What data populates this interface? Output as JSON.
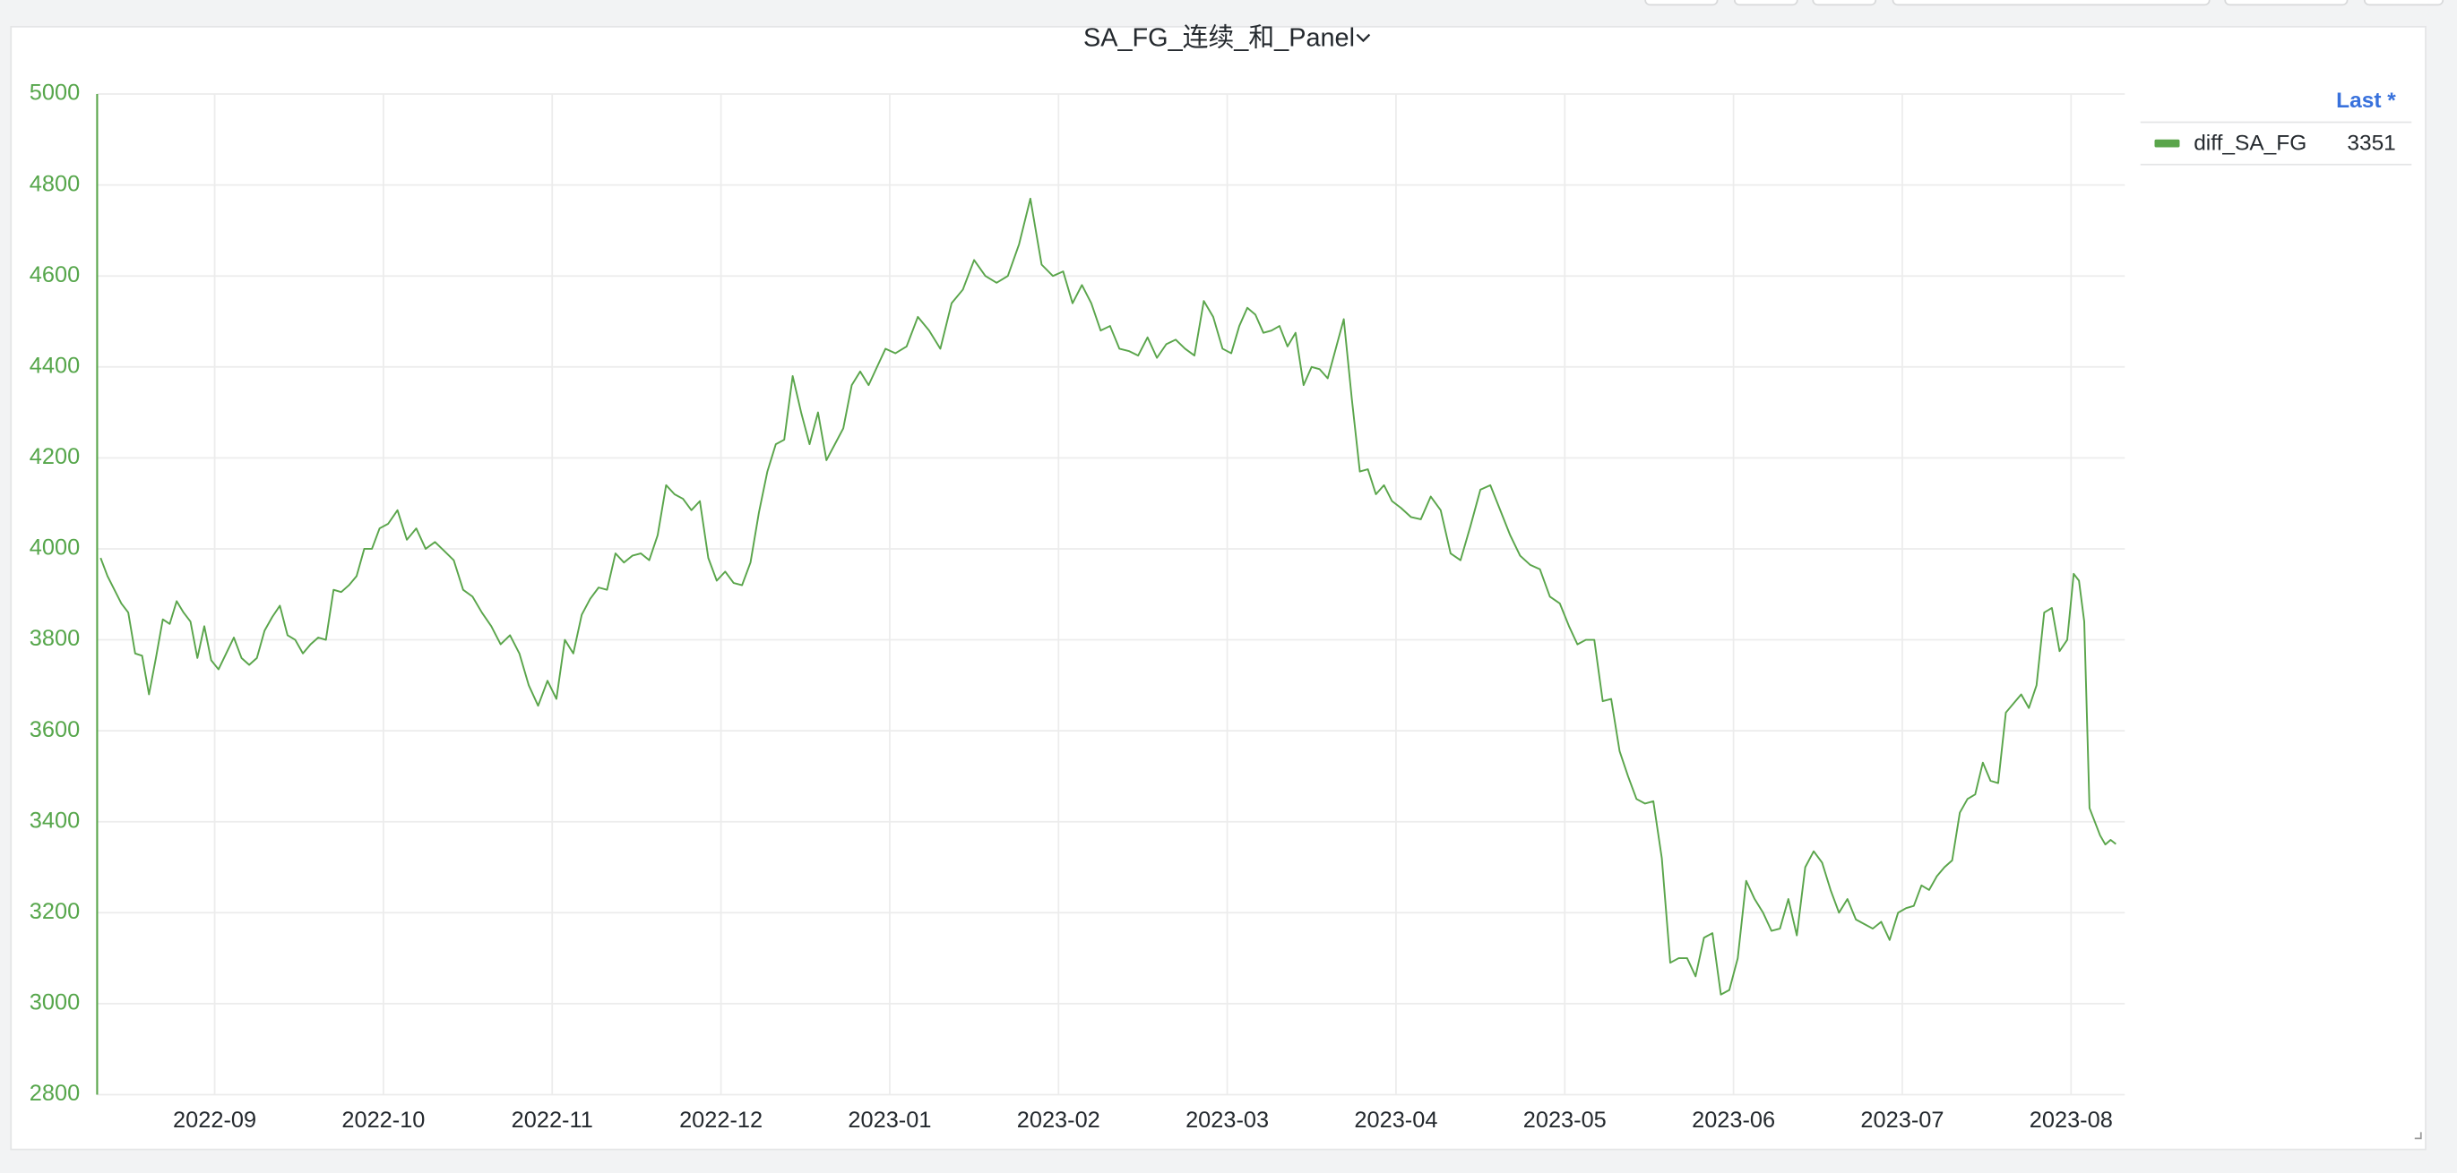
{
  "chart_data": {
    "type": "line",
    "title": "SA_FG_连续_和_Panel",
    "xlim": [
      "2022-08",
      "2023-08"
    ],
    "xticks": [
      "2022-09",
      "2022-10",
      "2022-11",
      "2022-12",
      "2023-01",
      "2023-02",
      "2023-03",
      "2023-04",
      "2023-05",
      "2023-06",
      "2023-07",
      "2023-08"
    ],
    "ylim": [
      2800,
      5000
    ],
    "yticks": [
      2800,
      3000,
      3200,
      3400,
      3600,
      3800,
      4000,
      4200,
      4400,
      4600,
      4800,
      5000
    ],
    "grid": true,
    "legend": {
      "position": "right",
      "stat_label": "Last *",
      "last": 3351
    },
    "x": [
      "2022-08",
      "2022-08",
      "2022-08",
      "2022-08",
      "2022-08",
      "2022-08",
      "2022-08",
      "2022-08",
      "2022-08",
      "2022-08",
      "2022-08",
      "2022-08",
      "2022-08",
      "2022-08",
      "2022-08",
      "2022-08",
      "2022-08",
      "2022-09",
      "2022-09",
      "2022-09",
      "2022-09",
      "2022-09",
      "2022-09",
      "2022-09",
      "2022-09",
      "2022-09",
      "2022-09",
      "2022-09",
      "2022-09",
      "2022-09",
      "2022-09",
      "2022-09",
      "2022-09",
      "2022-09",
      "2022-09",
      "2022-09",
      "2022-09",
      "2022-09",
      "2022-09",
      "2022-10",
      "2022-10",
      "2022-10",
      "2022-10",
      "2022-10",
      "2022-10",
      "2022-10",
      "2022-10",
      "2022-10",
      "2022-10",
      "2022-10",
      "2022-10",
      "2022-10",
      "2022-10",
      "2022-10",
      "2022-10",
      "2022-10",
      "2022-10",
      "2022-11",
      "2022-11",
      "2022-11",
      "2022-11",
      "2022-11",
      "2022-11",
      "2022-11",
      "2022-11",
      "2022-11",
      "2022-11",
      "2022-11",
      "2022-11",
      "2022-11",
      "2022-11",
      "2022-11",
      "2022-11",
      "2022-11",
      "2022-11",
      "2022-11",
      "2022-11",
      "2022-12",
      "2022-12",
      "2022-12",
      "2022-12",
      "2022-12",
      "2022-12",
      "2022-12",
      "2022-12",
      "2022-12",
      "2022-12",
      "2022-12",
      "2022-12",
      "2022-12",
      "2022-12",
      "2022-12",
      "2022-12",
      "2022-12",
      "2022-12",
      "2022-12",
      "2022-12",
      "2023-01",
      "2023-01",
      "2023-01",
      "2023-01",
      "2023-01",
      "2023-01",
      "2023-01",
      "2023-01",
      "2023-01",
      "2023-01",
      "2023-01",
      "2023-01",
      "2023-01",
      "2023-01",
      "2023-01",
      "2023-02",
      "2023-02",
      "2023-02",
      "2023-02",
      "2023-02",
      "2023-02",
      "2023-02",
      "2023-02",
      "2023-02",
      "2023-02",
      "2023-02",
      "2023-02",
      "2023-02",
      "2023-02",
      "2023-02",
      "2023-02",
      "2023-02",
      "2023-02",
      "2023-03",
      "2023-03",
      "2023-03",
      "2023-03",
      "2023-03",
      "2023-03",
      "2023-03",
      "2023-03",
      "2023-03",
      "2023-03",
      "2023-03",
      "2023-03",
      "2023-03",
      "2023-03",
      "2023-03",
      "2023-03",
      "2023-03",
      "2023-03",
      "2023-03",
      "2023-03",
      "2023-03",
      "2023-04",
      "2023-04",
      "2023-04",
      "2023-04",
      "2023-04",
      "2023-04",
      "2023-04",
      "2023-04",
      "2023-04",
      "2023-04",
      "2023-04",
      "2023-04",
      "2023-04",
      "2023-04",
      "2023-04",
      "2023-04",
      "2023-04",
      "2023-05",
      "2023-05",
      "2023-05",
      "2023-05",
      "2023-05",
      "2023-05",
      "2023-05",
      "2023-05",
      "2023-05",
      "2023-05",
      "2023-05",
      "2023-05",
      "2023-05",
      "2023-05",
      "2023-05",
      "2023-05",
      "2023-05",
      "2023-05",
      "2023-05",
      "2023-05",
      "2023-06",
      "2023-06",
      "2023-06",
      "2023-06",
      "2023-06",
      "2023-06",
      "2023-06",
      "2023-06",
      "2023-06",
      "2023-06",
      "2023-06",
      "2023-06",
      "2023-06",
      "2023-06",
      "2023-06",
      "2023-06",
      "2023-06",
      "2023-06",
      "2023-06",
      "2023-06",
      "2023-07",
      "2023-07",
      "2023-07",
      "2023-07",
      "2023-07",
      "2023-07",
      "2023-07",
      "2023-07",
      "2023-07",
      "2023-07",
      "2023-07",
      "2023-07",
      "2023-07",
      "2023-07",
      "2023-07",
      "2023-07",
      "2023-07",
      "2023-07",
      "2023-07",
      "2023-07",
      "2023-07",
      "2023-07",
      "2023-08",
      "2023-08",
      "2023-08",
      "2023-08",
      "2023-08",
      "2023-08",
      "2023-08",
      "2023-08",
      "2023-08"
    ],
    "series": [
      {
        "name": "diff_SA_FG",
        "color": "#5aa54b",
        "values": [
          3980,
          3940,
          3910,
          3880,
          3860,
          3770,
          3765,
          3680,
          3760,
          3845,
          3835,
          3885,
          3860,
          3840,
          3760,
          3830,
          3755,
          3735,
          3770,
          3805,
          3760,
          3745,
          3760,
          3820,
          3850,
          3875,
          3810,
          3800,
          3770,
          3790,
          3805,
          3800,
          3910,
          3905,
          3920,
          3940,
          4000,
          4000,
          4045,
          4055,
          4085,
          4020,
          4045,
          4000,
          4015,
          3995,
          3975,
          3910,
          3895,
          3860,
          3830,
          3790,
          3810,
          3770,
          3700,
          3655,
          3710,
          3670,
          3800,
          3770,
          3855,
          3890,
          3915,
          3910,
          3990,
          3970,
          3985,
          3990,
          3975,
          4030,
          4140,
          4120,
          4110,
          4085,
          4105,
          3980,
          3930,
          3950,
          3925,
          3920,
          3970,
          4080,
          4170,
          4230,
          4240,
          4380,
          4300,
          4230,
          4300,
          4195,
          4230,
          4265,
          4360,
          4390,
          4360,
          4400,
          4440,
          4430,
          4445,
          4510,
          4480,
          4440,
          4540,
          4570,
          4635,
          4600,
          4585,
          4600,
          4670,
          4770,
          4625,
          4600,
          4610,
          4540,
          4580,
          4540,
          4480,
          4490,
          4440,
          4435,
          4425,
          4465,
          4420,
          4450,
          4460,
          4440,
          4425,
          4545,
          4510,
          4440,
          4430,
          4490,
          4530,
          4515,
          4475,
          4480,
          4490,
          4445,
          4475,
          4360,
          4400,
          4395,
          4375,
          4440,
          4505,
          4330,
          4170,
          4175,
          4120,
          4140,
          4105,
          4090,
          4070,
          4065,
          4115,
          4085,
          3990,
          3975,
          4050,
          4130,
          4140,
          4085,
          4030,
          3985,
          3965,
          3955,
          3895,
          3880,
          3830,
          3790,
          3800,
          3800,
          3665,
          3670,
          3555,
          3500,
          3450,
          3440,
          3445,
          3320,
          3090,
          3100,
          3100,
          3060,
          3145,
          3155,
          3020,
          3030,
          3100,
          3270,
          3230,
          3200,
          3160,
          3165,
          3230,
          3150,
          3300,
          3335,
          3310,
          3250,
          3200,
          3230,
          3185,
          3175,
          3165,
          3180,
          3140,
          3200,
          3210,
          3215,
          3260,
          3250,
          3280,
          3300,
          3315,
          3420,
          3450,
          3460,
          3530,
          3490,
          3485,
          3640,
          3660,
          3680,
          3650,
          3700,
          3860,
          3870,
          3775,
          3800,
          3945,
          3930,
          3840,
          3430,
          3400,
          3370,
          3350,
          3360,
          3351
        ]
      }
    ]
  }
}
